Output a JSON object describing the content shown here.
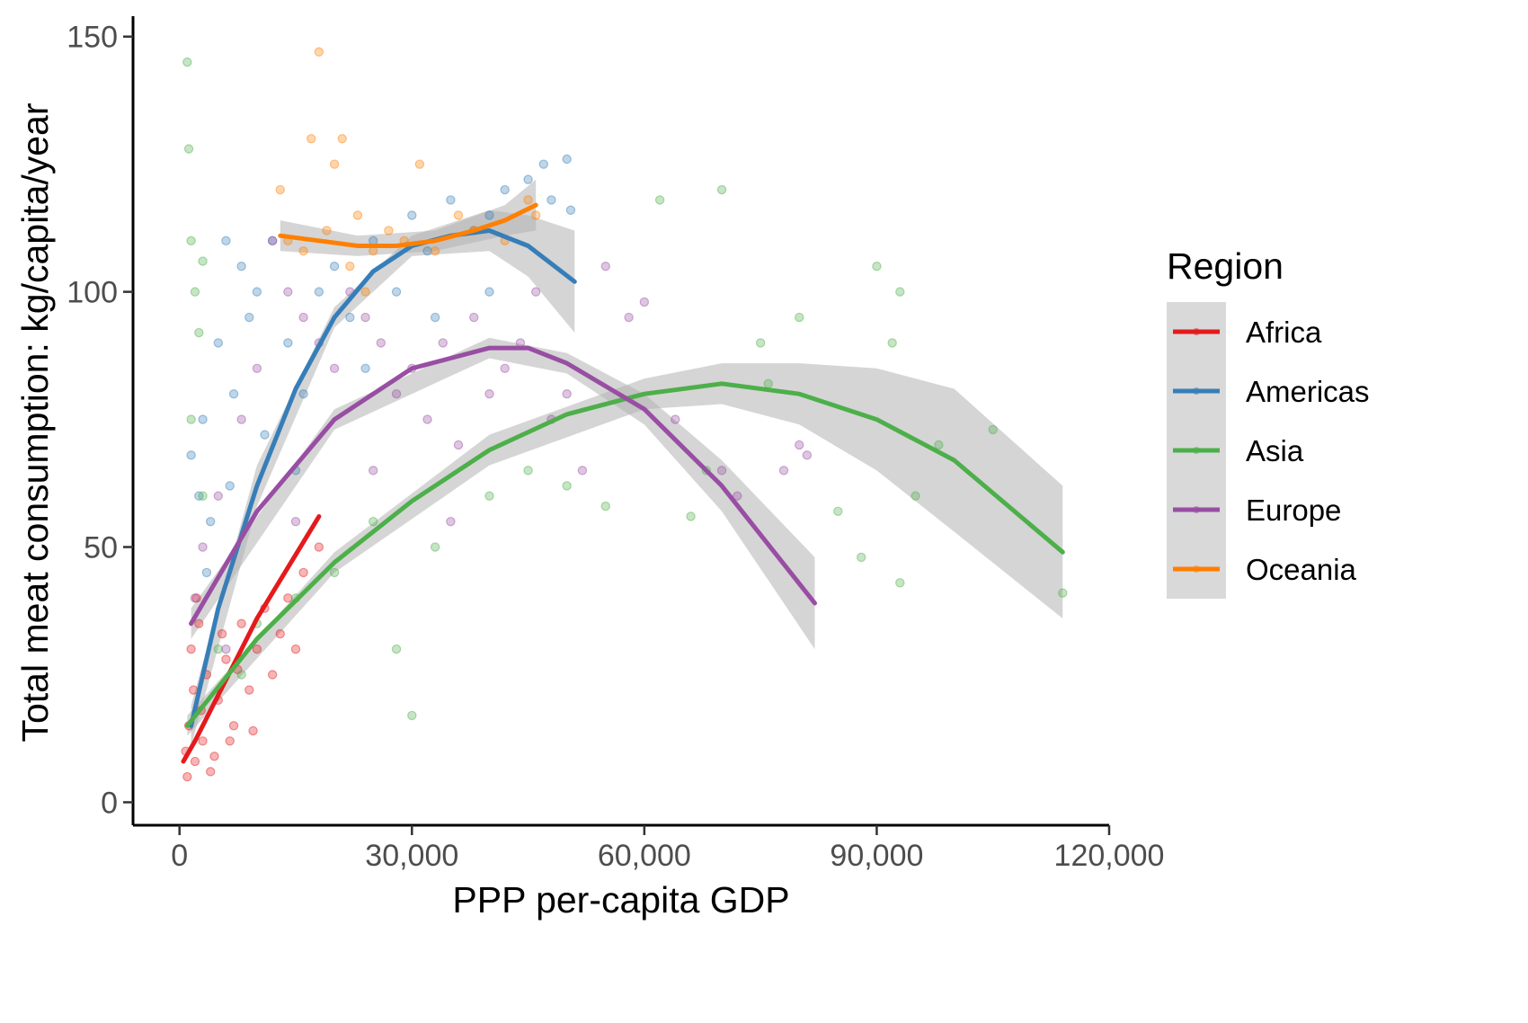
{
  "chart_data": {
    "type": "scatter",
    "title": "",
    "xlabel": "PPP per-capita GDP",
    "ylabel": "Total meat consumption: kg/capita/year",
    "xlim": [
      -6000,
      120000
    ],
    "ylim": [
      -4.5,
      154
    ],
    "x_ticks": [
      0,
      30000,
      60000,
      90000,
      120000
    ],
    "x_tick_labels": [
      "0",
      "30,000",
      "60,000",
      "90,000",
      "120,000"
    ],
    "y_ticks": [
      0,
      50,
      100,
      150
    ],
    "y_tick_labels": [
      "0",
      "50",
      "100",
      "150"
    ],
    "grid": false,
    "legend": {
      "title": "Region",
      "position": "right",
      "entries": [
        "Africa",
        "Americas",
        "Asia",
        "Europe",
        "Oceania"
      ]
    },
    "series": [
      {
        "name": "Africa",
        "color": "#E41A1C",
        "x_range": [
          500,
          18000
        ],
        "points": [
          [
            800,
            10
          ],
          [
            1200,
            15
          ],
          [
            1500,
            30
          ],
          [
            2000,
            8
          ],
          [
            2500,
            35
          ],
          [
            3000,
            12
          ],
          [
            3500,
            25
          ],
          [
            4000,
            6
          ],
          [
            5000,
            20
          ],
          [
            6000,
            28
          ],
          [
            7000,
            15
          ],
          [
            8000,
            35
          ],
          [
            9000,
            22
          ],
          [
            10000,
            30
          ],
          [
            11000,
            38
          ],
          [
            12000,
            25
          ],
          [
            14000,
            40
          ],
          [
            16000,
            45
          ],
          [
            18000,
            50
          ],
          [
            1000,
            5
          ],
          [
            1800,
            22
          ],
          [
            2200,
            40
          ],
          [
            2800,
            18
          ],
          [
            4500,
            9
          ],
          [
            5500,
            33
          ],
          [
            6500,
            12
          ],
          [
            7500,
            26
          ],
          [
            9500,
            14
          ],
          [
            13000,
            33
          ],
          [
            15000,
            30
          ]
        ],
        "fit": [
          [
            500,
            8
          ],
          [
            2000,
            12
          ],
          [
            4000,
            18
          ],
          [
            6000,
            24
          ],
          [
            8000,
            30
          ],
          [
            10000,
            36
          ],
          [
            12000,
            41
          ],
          [
            14000,
            46
          ],
          [
            16000,
            51
          ],
          [
            18000,
            56
          ]
        ],
        "band": null
      },
      {
        "name": "Americas",
        "color": "#377EB8",
        "x_range": [
          1500,
          51000
        ],
        "points": [
          [
            1500,
            68
          ],
          [
            2500,
            60
          ],
          [
            3000,
            75
          ],
          [
            4000,
            55
          ],
          [
            5000,
            90
          ],
          [
            6000,
            110
          ],
          [
            7000,
            80
          ],
          [
            8000,
            105
          ],
          [
            9000,
            95
          ],
          [
            10000,
            100
          ],
          [
            12000,
            110
          ],
          [
            14000,
            90
          ],
          [
            16000,
            80
          ],
          [
            18000,
            100
          ],
          [
            20000,
            105
          ],
          [
            22000,
            95
          ],
          [
            25000,
            110
          ],
          [
            28000,
            100
          ],
          [
            30000,
            115
          ],
          [
            32000,
            108
          ],
          [
            35000,
            118
          ],
          [
            38000,
            112
          ],
          [
            40000,
            115
          ],
          [
            42000,
            120
          ],
          [
            45000,
            122
          ],
          [
            47000,
            125
          ],
          [
            48000,
            118
          ],
          [
            50000,
            126
          ],
          [
            50500,
            116
          ],
          [
            3500,
            45
          ],
          [
            6500,
            62
          ],
          [
            11000,
            72
          ],
          [
            15000,
            65
          ],
          [
            24000,
            85
          ],
          [
            33000,
            95
          ],
          [
            40000,
            100
          ]
        ],
        "fit": [
          [
            1500,
            15
          ],
          [
            5000,
            38
          ],
          [
            10000,
            62
          ],
          [
            15000,
            81
          ],
          [
            20000,
            95
          ],
          [
            25000,
            104
          ],
          [
            30000,
            109
          ],
          [
            35000,
            111
          ],
          [
            40000,
            112
          ],
          [
            45000,
            109
          ],
          [
            51000,
            102
          ]
        ],
        "band": [
          [
            1500,
            11,
            19
          ],
          [
            10000,
            58,
            66
          ],
          [
            20000,
            93,
            97
          ],
          [
            30000,
            107,
            111
          ],
          [
            40000,
            108,
            116
          ],
          [
            45000,
            103,
            115
          ],
          [
            51000,
            92,
            112
          ]
        ]
      },
      {
        "name": "Asia",
        "color": "#4DAF4A",
        "x_range": [
          1000,
          114000
        ],
        "points": [
          [
            1000,
            145
          ],
          [
            1200,
            128
          ],
          [
            1500,
            110
          ],
          [
            2000,
            100
          ],
          [
            2500,
            92
          ],
          [
            3000,
            106
          ],
          [
            1500,
            75
          ],
          [
            3000,
            60
          ],
          [
            5000,
            30
          ],
          [
            8000,
            25
          ],
          [
            10000,
            35
          ],
          [
            15000,
            40
          ],
          [
            20000,
            45
          ],
          [
            25000,
            55
          ],
          [
            28000,
            30
          ],
          [
            30000,
            17
          ],
          [
            33000,
            50
          ],
          [
            40000,
            60
          ],
          [
            45000,
            65
          ],
          [
            50000,
            62
          ],
          [
            55000,
            58
          ],
          [
            62000,
            118
          ],
          [
            70000,
            120
          ],
          [
            75000,
            90
          ],
          [
            80000,
            95
          ],
          [
            85000,
            57
          ],
          [
            90000,
            105
          ],
          [
            92000,
            90
          ],
          [
            93000,
            100
          ],
          [
            95000,
            60
          ],
          [
            98000,
            70
          ],
          [
            105000,
            73
          ],
          [
            114000,
            41
          ],
          [
            88000,
            48
          ],
          [
            93000,
            43
          ],
          [
            66000,
            56
          ],
          [
            76000,
            82
          ],
          [
            68000,
            65
          ]
        ],
        "fit": [
          [
            1000,
            15
          ],
          [
            10000,
            32
          ],
          [
            20000,
            47
          ],
          [
            30000,
            59
          ],
          [
            40000,
            69
          ],
          [
            50000,
            76
          ],
          [
            60000,
            80
          ],
          [
            70000,
            82
          ],
          [
            80000,
            80
          ],
          [
            90000,
            75
          ],
          [
            100000,
            67
          ],
          [
            114000,
            49
          ]
        ],
        "band": [
          [
            1000,
            13,
            17
          ],
          [
            20000,
            45,
            49
          ],
          [
            40000,
            66,
            72
          ],
          [
            60000,
            77,
            83
          ],
          [
            70000,
            78,
            86
          ],
          [
            80000,
            74,
            86
          ],
          [
            90000,
            65,
            85
          ],
          [
            100000,
            53,
            81
          ],
          [
            114000,
            36,
            62
          ]
        ]
      },
      {
        "name": "Europe",
        "color": "#984EA3",
        "x_range": [
          1500,
          82000
        ],
        "points": [
          [
            2000,
            40
          ],
          [
            3000,
            50
          ],
          [
            5000,
            60
          ],
          [
            8000,
            75
          ],
          [
            10000,
            85
          ],
          [
            12000,
            110
          ],
          [
            14000,
            100
          ],
          [
            16000,
            95
          ],
          [
            18000,
            90
          ],
          [
            20000,
            85
          ],
          [
            22000,
            100
          ],
          [
            24000,
            95
          ],
          [
            26000,
            90
          ],
          [
            28000,
            80
          ],
          [
            30000,
            85
          ],
          [
            32000,
            75
          ],
          [
            34000,
            90
          ],
          [
            36000,
            70
          ],
          [
            38000,
            95
          ],
          [
            40000,
            80
          ],
          [
            42000,
            85
          ],
          [
            44000,
            90
          ],
          [
            46000,
            100
          ],
          [
            48000,
            75
          ],
          [
            50000,
            80
          ],
          [
            52000,
            65
          ],
          [
            55000,
            105
          ],
          [
            58000,
            95
          ],
          [
            60000,
            98
          ],
          [
            64000,
            75
          ],
          [
            70000,
            65
          ],
          [
            72000,
            60
          ],
          [
            78000,
            65
          ],
          [
            80000,
            70
          ],
          [
            81000,
            68
          ],
          [
            6000,
            30
          ],
          [
            15000,
            55
          ],
          [
            25000,
            65
          ],
          [
            35000,
            55
          ]
        ],
        "fit": [
          [
            1500,
            35
          ],
          [
            10000,
            57
          ],
          [
            20000,
            75
          ],
          [
            30000,
            85
          ],
          [
            40000,
            89
          ],
          [
            45000,
            89
          ],
          [
            50000,
            86
          ],
          [
            60000,
            77
          ],
          [
            70000,
            62
          ],
          [
            82000,
            39
          ]
        ],
        "band": [
          [
            1500,
            32,
            38
          ],
          [
            20000,
            73,
            77
          ],
          [
            40000,
            87,
            91
          ],
          [
            50000,
            84,
            88
          ],
          [
            60000,
            74,
            80
          ],
          [
            70000,
            57,
            67
          ],
          [
            82000,
            30,
            48
          ]
        ]
      },
      {
        "name": "Oceania",
        "color": "#FF7F00",
        "x_range": [
          13000,
          46000
        ],
        "points": [
          [
            13000,
            120
          ],
          [
            14000,
            110
          ],
          [
            16000,
            108
          ],
          [
            17000,
            130
          ],
          [
            18000,
            147
          ],
          [
            19000,
            112
          ],
          [
            20000,
            125
          ],
          [
            21000,
            130
          ],
          [
            22000,
            105
          ],
          [
            23000,
            115
          ],
          [
            24000,
            100
          ],
          [
            25000,
            108
          ],
          [
            27000,
            112
          ],
          [
            29000,
            110
          ],
          [
            31000,
            125
          ],
          [
            33000,
            108
          ],
          [
            36000,
            115
          ],
          [
            38000,
            112
          ],
          [
            42000,
            110
          ],
          [
            45000,
            118
          ],
          [
            46000,
            115
          ]
        ],
        "fit": [
          [
            13000,
            111
          ],
          [
            18000,
            110
          ],
          [
            23000,
            109
          ],
          [
            28000,
            109
          ],
          [
            33000,
            110
          ],
          [
            38000,
            112
          ],
          [
            42000,
            114
          ],
          [
            46000,
            117
          ]
        ],
        "band": [
          [
            13000,
            108,
            114
          ],
          [
            23000,
            107,
            111
          ],
          [
            33000,
            108,
            112
          ],
          [
            42000,
            111,
            117
          ],
          [
            46000,
            112,
            122
          ]
        ]
      }
    ]
  }
}
